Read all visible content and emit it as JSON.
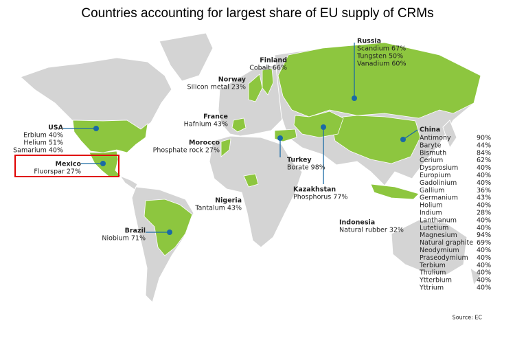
{
  "title": "Countries accounting for largest share of EU supply of CRMs",
  "countries": [
    {
      "name": "Russia",
      "items": [
        "Scandium 67%",
        "Tungsten 50%",
        "Vanadium 60%"
      ]
    },
    {
      "name": "Finland",
      "items": [
        "Cobalt 66%"
      ]
    },
    {
      "name": "Norway",
      "items": [
        "Silicon metal 23%"
      ]
    },
    {
      "name": "France",
      "items": [
        "Hafnium 43%"
      ]
    },
    {
      "name": "USA",
      "items": [
        "Erbium 40%",
        "Helium 51%",
        "Samarium 40%"
      ]
    },
    {
      "name": "Morocco",
      "items": [
        "Phosphate rock 27%"
      ]
    },
    {
      "name": "Mexico",
      "items": [
        "Fluorspar 27%"
      ]
    },
    {
      "name": "Turkey",
      "items": [
        "Borate 98%"
      ]
    },
    {
      "name": "Kazakhstan",
      "items": [
        "Phosphorus 77%"
      ]
    },
    {
      "name": "Nigeria",
      "items": [
        "Tantalum 43%"
      ]
    },
    {
      "name": "Brazil",
      "items": [
        "Niobium 71%"
      ]
    },
    {
      "name": "Indonesia",
      "items": [
        "Natural rubber 32%"
      ]
    }
  ],
  "china": {
    "name": "China",
    "rows": [
      [
        "Antimony",
        "90%"
      ],
      [
        "Baryte",
        "44%"
      ],
      [
        "Bismuth",
        "84%"
      ],
      [
        "Cerium",
        "62%"
      ],
      [
        "Dysprosium",
        "40%"
      ],
      [
        "Europium",
        "40%"
      ],
      [
        "Gadolinium",
        "40%"
      ],
      [
        "Gallium",
        "36%"
      ],
      [
        "Germanium",
        "43%"
      ],
      [
        "Holium",
        "40%"
      ],
      [
        "Indium",
        "28%"
      ],
      [
        "Lanthanum",
        "40%"
      ],
      [
        "Lutetium",
        "40%"
      ],
      [
        "Magnesium",
        "94%"
      ],
      [
        "Natural graphite",
        "69%"
      ],
      [
        "Neodymium",
        "40%"
      ],
      [
        "Praseodymium",
        "40%"
      ],
      [
        "Terbium",
        "40%"
      ],
      [
        "Thulium",
        "40%"
      ],
      [
        "Ytterbium",
        "40%"
      ],
      [
        "Yttrium",
        "40%"
      ]
    ]
  },
  "source": "Source: EC"
}
